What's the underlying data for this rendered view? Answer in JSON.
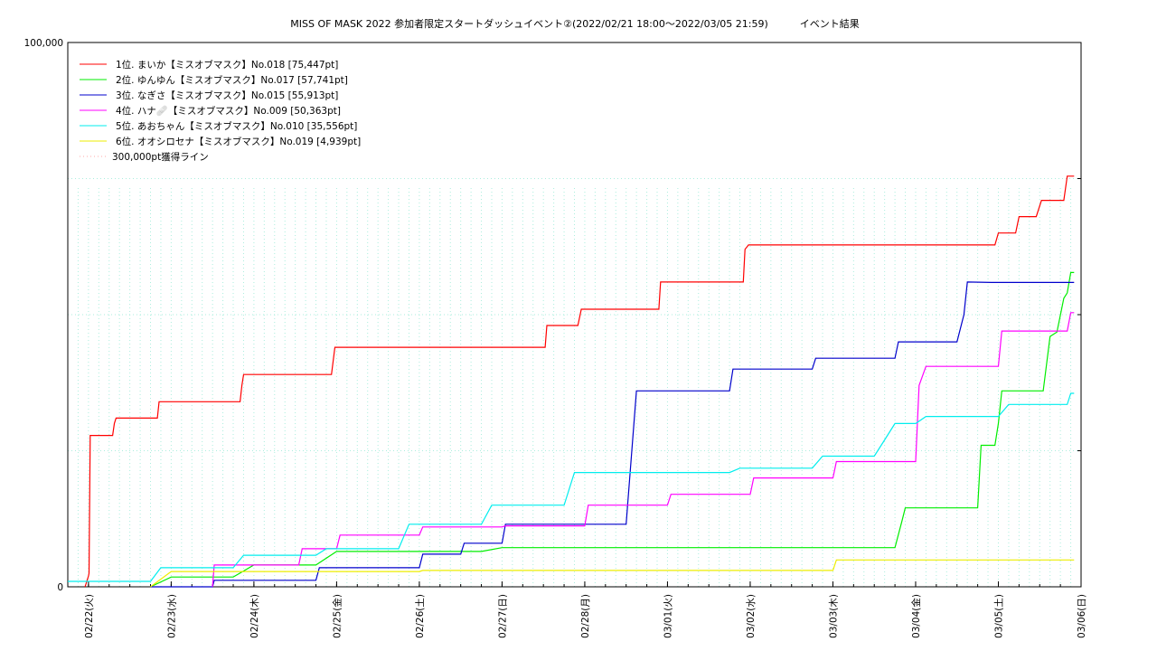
{
  "chart_data": {
    "type": "line",
    "title": "MISS OF MASK 2022 参加者限定スタートダッシュイベント②(2022/02/21 18:00～2022/03/05 21:59)          イベント結果",
    "xlabel": "",
    "ylabel": "",
    "ylim": [
      0,
      100000
    ],
    "xlim": [
      "2022/02/21 18:00",
      "2022/03/06 00:00"
    ],
    "y_tick_labels": [
      "0",
      "100,000"
    ],
    "x_tick_labels": [
      "02/22(火)",
      "02/23(水)",
      "02/24(木)",
      "02/25(金)",
      "02/26(土)",
      "02/27(日)",
      "02/28(月)",
      "03/01(火)",
      "03/02(水)",
      "03/03(木)",
      "03/04(金)",
      "03/05(土)",
      "03/06(日)"
    ],
    "grid": true,
    "legend_position": "top-left",
    "series": [
      {
        "name": "1位. まいか【ミスオブマスク】No.018 [75,447pt]",
        "color": "#ff0000",
        "points": [
          [
            "2022/02/21 23:00",
            0
          ],
          [
            "2022/02/22 00:00",
            2000
          ],
          [
            "2022/02/22 00:10",
            2500
          ],
          [
            "2022/02/22 00:30",
            27800
          ],
          [
            "2022/02/22 07:00",
            27800
          ],
          [
            "2022/02/22 07:30",
            30000
          ],
          [
            "2022/02/22 08:00",
            31000
          ],
          [
            "2022/02/22 20:00",
            31000
          ],
          [
            "2022/02/22 20:30",
            34000
          ],
          [
            "2022/02/23 20:00",
            34000
          ],
          [
            "2022/02/23 20:30",
            37000
          ],
          [
            "2022/02/23 21:00",
            39000
          ],
          [
            "2022/02/24 22:30",
            39000
          ],
          [
            "2022/02/24 23:30",
            44000
          ],
          [
            "2022/02/27 12:30",
            44000
          ],
          [
            "2022/02/27 13:00",
            48000
          ],
          [
            "2022/02/27 22:00",
            48000
          ],
          [
            "2022/02/27 23:00",
            51000
          ],
          [
            "2022/02/28 21:30",
            51000
          ],
          [
            "2022/02/28 22:00",
            56000
          ],
          [
            "2022/03/01 22:00",
            56000
          ],
          [
            "2022/03/01 22:30",
            62000
          ],
          [
            "2022/03/01 23:30",
            62800
          ],
          [
            "2022/03/04 23:00",
            62800
          ],
          [
            "2022/03/05 00:00",
            65000
          ],
          [
            "2022/03/05 05:00",
            65000
          ],
          [
            "2022/03/05 06:00",
            68000
          ],
          [
            "2022/03/05 11:00",
            68000
          ],
          [
            "2022/03/05 12:30",
            71000
          ],
          [
            "2022/03/05 19:00",
            71000
          ],
          [
            "2022/03/05 20:00",
            75447
          ],
          [
            "2022/03/05 21:59",
            75447
          ]
        ]
      },
      {
        "name": "2位. ゆんゆん【ミスオブマスク】No.017 [57,741pt]",
        "color": "#00ee00",
        "points": [
          [
            "2022/02/22 18:00",
            0
          ],
          [
            "2022/02/23 00:00",
            1800
          ],
          [
            "2022/02/23 18:00",
            1800
          ],
          [
            "2022/02/24 00:00",
            4000
          ],
          [
            "2022/02/24 18:00",
            4000
          ],
          [
            "2022/02/25 00:00",
            6500
          ],
          [
            "2022/02/26 18:00",
            6500
          ],
          [
            "2022/02/27 00:00",
            7200
          ],
          [
            "2022/03/03 18:00",
            7200
          ],
          [
            "2022/03/03 20:00",
            12000
          ],
          [
            "2022/03/03 21:00",
            14500
          ],
          [
            "2022/03/04 18:00",
            14500
          ],
          [
            "2022/03/04 19:00",
            26000
          ],
          [
            "2022/03/04 23:00",
            26000
          ],
          [
            "2022/03/05 00:00",
            30000
          ],
          [
            "2022/03/05 01:00",
            36000
          ],
          [
            "2022/03/05 13:00",
            36000
          ],
          [
            "2022/03/05 15:00",
            46000
          ],
          [
            "2022/03/05 17:00",
            46800
          ],
          [
            "2022/03/05 19:00",
            53000
          ],
          [
            "2022/03/05 20:00",
            54000
          ],
          [
            "2022/03/05 21:00",
            57741
          ],
          [
            "2022/03/05 21:59",
            57741
          ]
        ]
      },
      {
        "name": "3位. なぎさ【ミスオブマスク】No.015 [55,913pt]",
        "color": "#0000cc",
        "points": [
          [
            "2022/02/22 18:00",
            0
          ],
          [
            "2022/02/23 12:00",
            0
          ],
          [
            "2022/02/23 12:30",
            1200
          ],
          [
            "2022/02/24 18:00",
            1200
          ],
          [
            "2022/02/24 19:00",
            3500
          ],
          [
            "2022/02/26 00:00",
            3500
          ],
          [
            "2022/02/26 01:00",
            6000
          ],
          [
            "2022/02/26 12:00",
            6000
          ],
          [
            "2022/02/26 13:00",
            8000
          ],
          [
            "2022/02/27 00:00",
            8000
          ],
          [
            "2022/02/27 01:00",
            11500
          ],
          [
            "2022/02/28 12:00",
            11500
          ],
          [
            "2022/02/28 15:00",
            36000
          ],
          [
            "2022/03/01 18:00",
            36000
          ],
          [
            "2022/03/01 19:00",
            40000
          ],
          [
            "2022/03/02 18:00",
            40000
          ],
          [
            "2022/03/02 19:00",
            42000
          ],
          [
            "2022/03/03 18:00",
            42000
          ],
          [
            "2022/03/03 19:00",
            45000
          ],
          [
            "2022/03/04 12:00",
            45000
          ],
          [
            "2022/03/04 14:00",
            50000
          ],
          [
            "2022/03/04 15:00",
            56000
          ],
          [
            "2022/03/04 21:59",
            55913
          ],
          [
            "2022/03/05 21:59",
            55913
          ]
        ]
      },
      {
        "name": "4位. ハナ🩹【ミスオブマスク】No.009 [50,363pt]",
        "color": "#ff00ff",
        "points": [
          [
            "2022/02/23 12:00",
            0
          ],
          [
            "2022/02/23 12:30",
            4000
          ],
          [
            "2022/02/24 13:00",
            4000
          ],
          [
            "2022/02/24 14:00",
            7000
          ],
          [
            "2022/02/25 00:00",
            7000
          ],
          [
            "2022/02/25 01:00",
            9500
          ],
          [
            "2022/02/26 00:00",
            9500
          ],
          [
            "2022/02/26 01:00",
            11000
          ],
          [
            "2022/02/27 00:00",
            11000
          ],
          [
            "2022/02/27 01:00",
            11200
          ],
          [
            "2022/02/28 00:00",
            11200
          ],
          [
            "2022/02/28 01:00",
            15000
          ],
          [
            "2022/03/01 00:00",
            15000
          ],
          [
            "2022/03/01 01:00",
            17000
          ],
          [
            "2022/03/02 00:00",
            17000
          ],
          [
            "2022/03/02 01:00",
            20000
          ],
          [
            "2022/03/03 00:00",
            20000
          ],
          [
            "2022/03/03 01:00",
            23000
          ],
          [
            "2022/03/04 00:00",
            23000
          ],
          [
            "2022/03/04 01:00",
            37000
          ],
          [
            "2022/03/04 03:00",
            40500
          ],
          [
            "2022/03/05 00:00",
            40500
          ],
          [
            "2022/03/05 01:00",
            47000
          ],
          [
            "2022/03/05 20:00",
            47000
          ],
          [
            "2022/03/05 21:00",
            50363
          ],
          [
            "2022/03/05 21:59",
            50363
          ]
        ]
      },
      {
        "name": "5位. あおちゃん【ミスオブマスク】No.010 [35,556pt]",
        "color": "#00eeee",
        "points": [
          [
            "2022/02/21 18:00",
            1000
          ],
          [
            "2022/02/22 18:00",
            1000
          ],
          [
            "2022/02/22 21:00",
            3500
          ],
          [
            "2022/02/23 18:00",
            3500
          ],
          [
            "2022/02/23 21:00",
            5800
          ],
          [
            "2022/02/24 18:00",
            5800
          ],
          [
            "2022/02/24 21:00",
            7000
          ],
          [
            "2022/02/25 18:00",
            7000
          ],
          [
            "2022/02/25 21:00",
            11500
          ],
          [
            "2022/02/26 18:00",
            11500
          ],
          [
            "2022/02/26 21:00",
            15000
          ],
          [
            "2022/02/27 18:00",
            15000
          ],
          [
            "2022/02/27 21:00",
            21000
          ],
          [
            "2022/03/01 18:00",
            21000
          ],
          [
            "2022/03/01 21:00",
            21800
          ],
          [
            "2022/03/02 18:00",
            21800
          ],
          [
            "2022/03/02 21:00",
            24000
          ],
          [
            "2022/03/03 12:00",
            24000
          ],
          [
            "2022/03/03 15:00",
            27000
          ],
          [
            "2022/03/03 18:00",
            30000
          ],
          [
            "2022/03/04 00:00",
            30000
          ],
          [
            "2022/03/04 03:00",
            31300
          ],
          [
            "2022/03/05 00:00",
            31300
          ],
          [
            "2022/03/05 03:00",
            33500
          ],
          [
            "2022/03/05 20:00",
            33500
          ],
          [
            "2022/03/05 21:00",
            35556
          ],
          [
            "2022/03/05 21:59",
            35556
          ]
        ]
      },
      {
        "name": "6位. オオシロセナ【ミスオブマスク】No.019 [4,939pt]",
        "color": "#eeee00",
        "points": [
          [
            "2022/02/22 18:00",
            0
          ],
          [
            "2022/02/23 00:00",
            2800
          ],
          [
            "2022/02/26 00:00",
            2800
          ],
          [
            "2022/02/26 01:00",
            3000
          ],
          [
            "2022/03/03 00:00",
            3000
          ],
          [
            "2022/03/03 01:00",
            4939
          ],
          [
            "2022/03/05 21:59",
            4939
          ]
        ]
      },
      {
        "name": "300,000pt獲得ライン",
        "color": "#ffaaaa",
        "points": []
      }
    ]
  }
}
